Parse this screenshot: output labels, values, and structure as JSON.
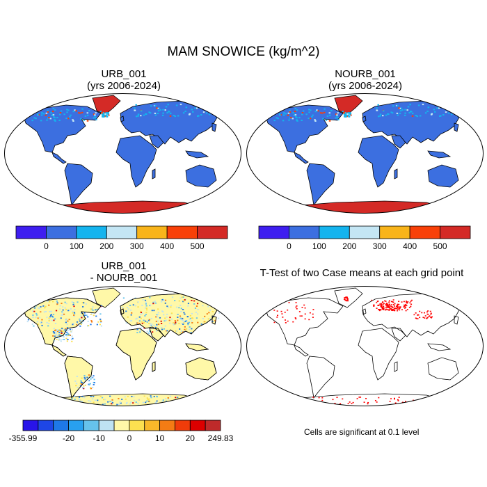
{
  "figure": {
    "title": "MAM SNOWICE (kg/m^2)"
  },
  "panels": {
    "top_left": {
      "title_line1": "URB_001",
      "title_line2": "(yrs 2006-2024)"
    },
    "top_right": {
      "title_line1": "NOURB_001",
      "title_line2": "(yrs 2006-2024)"
    },
    "bottom_left": {
      "title_line1": "URB_001",
      "title_line2": "- NOURB_001"
    },
    "bottom_right": {
      "title_line1": "T-Test of two Case means at each grid point"
    }
  },
  "colorbar_abs": {
    "colors": [
      "#3e1ef0",
      "#3c6fe0",
      "#14b4ee",
      "#c4e6f4",
      "#f8b41a",
      "#f84008",
      "#d42a26"
    ],
    "ticks": [
      "0",
      "100",
      "200",
      "300",
      "400",
      "500"
    ]
  },
  "colorbar_diff": {
    "colors": [
      "#2814e8",
      "#1e46e6",
      "#1e78e8",
      "#28a0f0",
      "#66c2ec",
      "#bee2f2",
      "#fff8a8",
      "#fce050",
      "#f8b82a",
      "#f47c14",
      "#f03c0a",
      "#dc0000",
      "#be2a2a"
    ],
    "ticks": [
      "-355.99",
      "-20",
      "-10",
      "0",
      "10",
      "20",
      "249.83"
    ]
  },
  "significance_note": "Cells are significant at 0.1 level",
  "map_colors": {
    "land_low": "#3c6fe0",
    "antarctica": "#d42a26",
    "greenland": "#d42a26",
    "snow_light": "#14b4ee",
    "diff_zero": "#fff8a8",
    "diff_pos": "#f47c14",
    "diff_neg": "#1e78e8",
    "significant": "#ff0000"
  }
}
